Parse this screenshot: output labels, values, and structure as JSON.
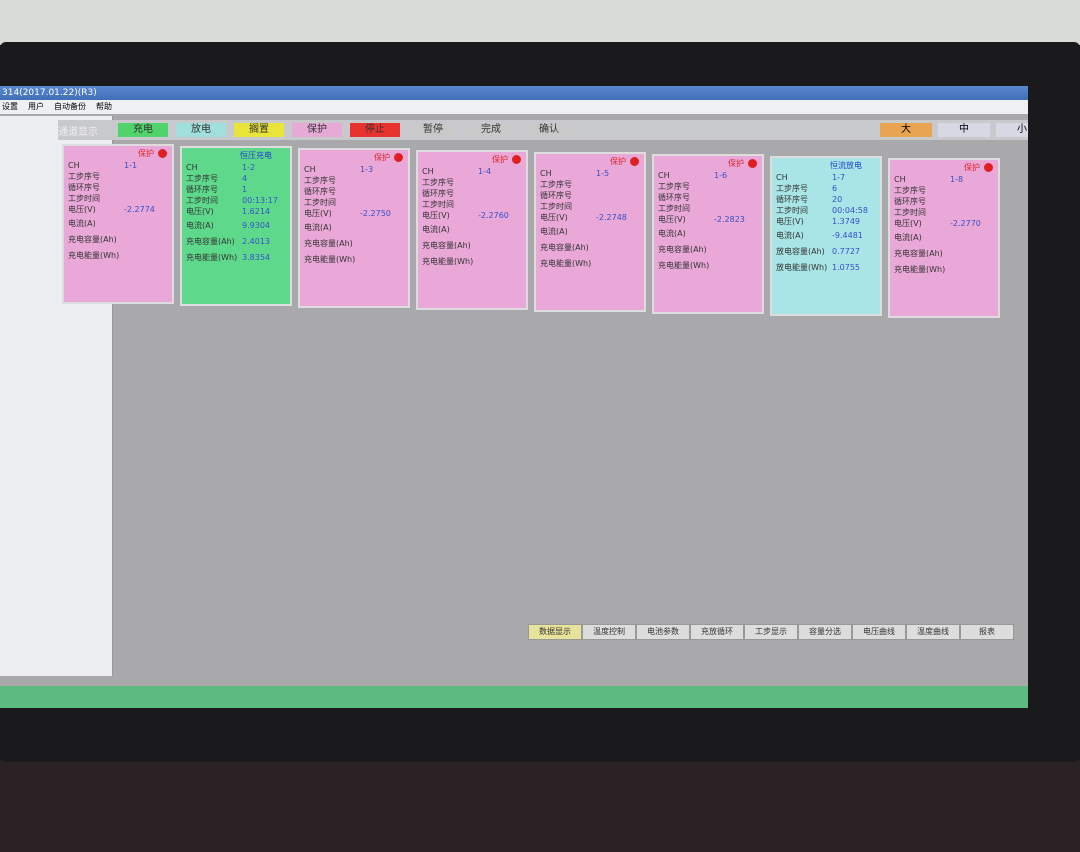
{
  "window": {
    "title": "314(2017.01.22)(R3)",
    "menu": [
      "设置",
      "用户",
      "自动备份",
      "帮助"
    ]
  },
  "toolbar": {
    "label": "通道显示",
    "states": [
      {
        "text": "充电",
        "color": "#4fd36a"
      },
      {
        "text": "放电",
        "color": "#9fe0dc"
      },
      {
        "text": "搁置",
        "color": "#e8e43a"
      },
      {
        "text": "保护",
        "color": "#e7a9d5"
      },
      {
        "text": "停止",
        "color": "#e8322e"
      },
      {
        "text": "暂停",
        "color": "#c9c9c9"
      },
      {
        "text": "完成",
        "color": "#c9c9c9"
      },
      {
        "text": "确认",
        "color": "#c9c9c9"
      }
    ],
    "sizes": [
      {
        "text": "大",
        "color": "#e8a450"
      },
      {
        "text": "中",
        "color": "#d6d9e3"
      },
      {
        "text": "小",
        "color": "#d6d9e3"
      }
    ]
  },
  "cards": [
    {
      "status": "保护",
      "color": "#e9a8d8",
      "ch": "CH",
      "id": "1-1",
      "alarm": true,
      "rows": [
        {
          "label": "工步序号"
        },
        {
          "label": "循环序号"
        },
        {
          "label": "工步时间"
        },
        {
          "label": "电压(V)",
          "value": "-2.2774"
        },
        {
          "label": "电流(A)"
        },
        {
          "label": "充电容量(Ah)"
        },
        {
          "label": "充电能量(Wh)"
        }
      ]
    },
    {
      "status": "恒压充电",
      "color": "#5ed98c",
      "ch": "CH",
      "id": "1-2",
      "alarm": false,
      "rows": [
        {
          "label": "工步序号",
          "value": "4"
        },
        {
          "label": "循环序号",
          "value": "1"
        },
        {
          "label": "工步时间",
          "value": "00:13:17"
        },
        {
          "label": "电压(V)",
          "value": "1.6214"
        },
        {
          "label": "电流(A)",
          "value": "9.9304"
        },
        {
          "label": "充电容量(Ah)",
          "value": "2.4013"
        },
        {
          "label": "充电能量(Wh)",
          "value": "3.8354"
        }
      ]
    },
    {
      "status": "保护",
      "color": "#e9a8d8",
      "ch": "CH",
      "id": "1-3",
      "alarm": true,
      "rows": [
        {
          "label": "工步序号"
        },
        {
          "label": "循环序号"
        },
        {
          "label": "工步时间"
        },
        {
          "label": "电压(V)",
          "value": "-2.2750"
        },
        {
          "label": "电流(A)"
        },
        {
          "label": "充电容量(Ah)"
        },
        {
          "label": "充电能量(Wh)"
        }
      ]
    },
    {
      "status": "保护",
      "color": "#e9a8d8",
      "ch": "CH",
      "id": "1-4",
      "alarm": true,
      "rows": [
        {
          "label": "工步序号"
        },
        {
          "label": "循环序号"
        },
        {
          "label": "工步时间"
        },
        {
          "label": "电压(V)",
          "value": "-2.2760"
        },
        {
          "label": "电流(A)"
        },
        {
          "label": "充电容量(Ah)"
        },
        {
          "label": "充电能量(Wh)"
        }
      ]
    },
    {
      "status": "保护",
      "color": "#e9a8d8",
      "ch": "CH",
      "id": "1-5",
      "alarm": true,
      "rows": [
        {
          "label": "工步序号"
        },
        {
          "label": "循环序号"
        },
        {
          "label": "工步时间"
        },
        {
          "label": "电压(V)",
          "value": "-2.2748"
        },
        {
          "label": "电流(A)"
        },
        {
          "label": "充电容量(Ah)"
        },
        {
          "label": "充电能量(Wh)"
        }
      ]
    },
    {
      "status": "保护",
      "color": "#e9a8d8",
      "ch": "CH",
      "id": "1-6",
      "alarm": true,
      "rows": [
        {
          "label": "工步序号"
        },
        {
          "label": "循环序号"
        },
        {
          "label": "工步时间"
        },
        {
          "label": "电压(V)",
          "value": "-2.2823"
        },
        {
          "label": "电流(A)"
        },
        {
          "label": "充电容量(Ah)"
        },
        {
          "label": "充电能量(Wh)"
        }
      ]
    },
    {
      "status": "恒流放电",
      "color": "#a9e4e6",
      "ch": "CH",
      "id": "1-7",
      "alarm": false,
      "rows": [
        {
          "label": "工步序号",
          "value": "6"
        },
        {
          "label": "循环序号",
          "value": "20"
        },
        {
          "label": "工步时间",
          "value": "00:04:58"
        },
        {
          "label": "电压(V)",
          "value": "1.3749"
        },
        {
          "label": "电流(A)",
          "value": "-9.4481"
        },
        {
          "label": "放电容量(Ah)",
          "value": "0.7727"
        },
        {
          "label": "放电能量(Wh)",
          "value": "1.0755"
        }
      ]
    },
    {
      "status": "保护",
      "color": "#e9a8d8",
      "ch": "CH",
      "id": "1-8",
      "alarm": true,
      "rows": [
        {
          "label": "工步序号"
        },
        {
          "label": "循环序号"
        },
        {
          "label": "工步时间"
        },
        {
          "label": "电压(V)",
          "value": "-2.2770"
        },
        {
          "label": "电流(A)"
        },
        {
          "label": "充电容量(Ah)"
        },
        {
          "label": "充电能量(Wh)"
        }
      ]
    }
  ],
  "tabs": [
    "数据显示",
    "温度控制",
    "电池参数",
    "充放循环",
    "工步显示",
    "容量分选",
    "电压曲线",
    "温度曲线",
    "报表"
  ]
}
